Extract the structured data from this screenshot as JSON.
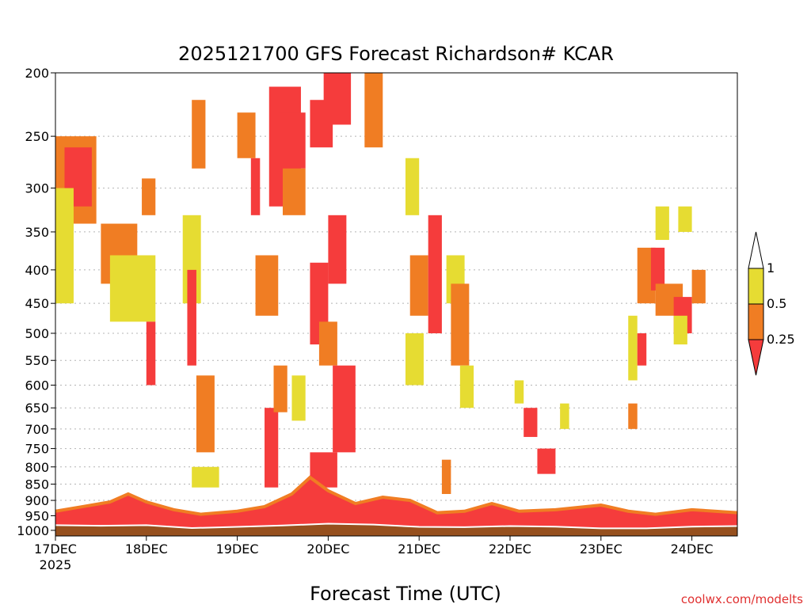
{
  "chart_data": {
    "type": "heatmap",
    "title": "2025121700 GFS Forecast Richardson# KCAR",
    "xlabel": "Forecast Time (UTC)",
    "ylabel": "",
    "credit": "coolwx.com/modelts",
    "x_start_label": "17DEC",
    "x_start_year": "2025",
    "x_ticks": [
      "17DEC",
      "18DEC",
      "19DEC",
      "20DEC",
      "21DEC",
      "22DEC",
      "23DEC",
      "24DEC"
    ],
    "x_tick_days": [
      0,
      1,
      2,
      3,
      4,
      5,
      6,
      7
    ],
    "x_range_days": [
      0,
      7.5
    ],
    "y_ticks": [
      200,
      250,
      300,
      350,
      400,
      450,
      500,
      550,
      600,
      650,
      700,
      750,
      800,
      850,
      900,
      950,
      1000
    ],
    "y_range_hpa": [
      200,
      1020
    ],
    "y_scale": "log-pressure (inverted, 1000 at bottom)",
    "gridlines": "dotted horizontal at pressure levels",
    "legend": {
      "position": "right",
      "labels": [
        "1",
        "0.5",
        "0.25"
      ],
      "bins": [
        {
          "range": "< 0.25",
          "color": "#f53c3c"
        },
        {
          "range": "0.25 - 0.5",
          "color": "#f07d23"
        },
        {
          "range": "0.5 - 1",
          "color": "#e6dc32"
        },
        {
          "range": "> 1",
          "color": "#ffffff"
        }
      ]
    },
    "colors": {
      "low": "#f53c3c",
      "mid": "#f07d23",
      "high": "#e6dc32",
      "ground": "#96501e",
      "sfc_line": "#ffffff",
      "credit": "#e03030"
    },
    "regions": [
      {
        "day": [
          0.0,
          0.45
        ],
        "p": [
          250,
          340
        ],
        "level": "mid"
      },
      {
        "day": [
          0.1,
          0.4
        ],
        "p": [
          260,
          320
        ],
        "level": "low"
      },
      {
        "day": [
          0.0,
          0.2
        ],
        "p": [
          300,
          450
        ],
        "level": "high"
      },
      {
        "day": [
          0.5,
          0.9
        ],
        "p": [
          340,
          420
        ],
        "level": "mid"
      },
      {
        "day": [
          0.6,
          1.1
        ],
        "p": [
          380,
          480
        ],
        "level": "high"
      },
      {
        "day": [
          0.95,
          1.1
        ],
        "p": [
          290,
          330
        ],
        "level": "mid"
      },
      {
        "day": [
          1.0,
          1.1
        ],
        "p": [
          480,
          600
        ],
        "level": "low"
      },
      {
        "day": [
          1.4,
          1.6
        ],
        "p": [
          330,
          450
        ],
        "level": "high"
      },
      {
        "day": [
          1.45,
          1.55
        ],
        "p": [
          400,
          560
        ],
        "level": "low"
      },
      {
        "day": [
          1.5,
          1.65
        ],
        "p": [
          220,
          280
        ],
        "level": "mid"
      },
      {
        "day": [
          1.55,
          1.75
        ],
        "p": [
          580,
          760
        ],
        "level": "mid"
      },
      {
        "day": [
          1.5,
          1.8
        ],
        "p": [
          800,
          860
        ],
        "level": "high"
      },
      {
        "day": [
          2.0,
          2.2
        ],
        "p": [
          230,
          270
        ],
        "level": "mid"
      },
      {
        "day": [
          2.15,
          2.25
        ],
        "p": [
          270,
          330
        ],
        "level": "low"
      },
      {
        "day": [
          2.2,
          2.45
        ],
        "p": [
          380,
          470
        ],
        "level": "mid"
      },
      {
        "day": [
          2.3,
          2.45
        ],
        "p": [
          650,
          860
        ],
        "level": "low"
      },
      {
        "day": [
          2.35,
          2.7
        ],
        "p": [
          210,
          320
        ],
        "level": "low"
      },
      {
        "day": [
          2.45,
          2.75
        ],
        "p": [
          230,
          280
        ],
        "level": "low"
      },
      {
        "day": [
          2.5,
          2.75
        ],
        "p": [
          280,
          330
        ],
        "level": "mid"
      },
      {
        "day": [
          2.4,
          2.55
        ],
        "p": [
          560,
          660
        ],
        "level": "mid"
      },
      {
        "day": [
          2.6,
          2.75
        ],
        "p": [
          580,
          680
        ],
        "level": "high"
      },
      {
        "day": [
          2.8,
          3.0
        ],
        "p": [
          390,
          520
        ],
        "level": "low"
      },
      {
        "day": [
          2.8,
          3.05
        ],
        "p": [
          220,
          260
        ],
        "level": "low"
      },
      {
        "day": [
          2.9,
          3.1
        ],
        "p": [
          480,
          560
        ],
        "level": "mid"
      },
      {
        "day": [
          2.95,
          3.25
        ],
        "p": [
          200,
          240
        ],
        "level": "low"
      },
      {
        "day": [
          3.0,
          3.2
        ],
        "p": [
          330,
          420
        ],
        "level": "low"
      },
      {
        "day": [
          3.05,
          3.3
        ],
        "p": [
          560,
          760
        ],
        "level": "low"
      },
      {
        "day": [
          2.8,
          3.1
        ],
        "p": [
          760,
          860
        ],
        "level": "low"
      },
      {
        "day": [
          3.4,
          3.6
        ],
        "p": [
          200,
          260
        ],
        "level": "mid"
      },
      {
        "day": [
          3.85,
          4.0
        ],
        "p": [
          270,
          330
        ],
        "level": "high"
      },
      {
        "day": [
          3.9,
          4.1
        ],
        "p": [
          380,
          470
        ],
        "level": "mid"
      },
      {
        "day": [
          3.85,
          4.05
        ],
        "p": [
          500,
          600
        ],
        "level": "high"
      },
      {
        "day": [
          4.1,
          4.25
        ],
        "p": [
          330,
          500
        ],
        "level": "low"
      },
      {
        "day": [
          4.3,
          4.5
        ],
        "p": [
          380,
          450
        ],
        "level": "high"
      },
      {
        "day": [
          4.35,
          4.55
        ],
        "p": [
          420,
          560
        ],
        "level": "mid"
      },
      {
        "day": [
          4.45,
          4.6
        ],
        "p": [
          560,
          650
        ],
        "level": "high"
      },
      {
        "day": [
          4.25,
          4.35
        ],
        "p": [
          780,
          880
        ],
        "level": "mid"
      },
      {
        "day": [
          5.05,
          5.15
        ],
        "p": [
          590,
          640
        ],
        "level": "high"
      },
      {
        "day": [
          5.15,
          5.3
        ],
        "p": [
          650,
          720
        ],
        "level": "low"
      },
      {
        "day": [
          5.3,
          5.5
        ],
        "p": [
          750,
          820
        ],
        "level": "low"
      },
      {
        "day": [
          5.55,
          5.65
        ],
        "p": [
          640,
          700
        ],
        "level": "high"
      },
      {
        "day": [
          6.3,
          6.4
        ],
        "p": [
          470,
          590
        ],
        "level": "high"
      },
      {
        "day": [
          6.4,
          6.5
        ],
        "p": [
          500,
          560
        ],
        "level": "low"
      },
      {
        "day": [
          6.4,
          6.6
        ],
        "p": [
          370,
          450
        ],
        "level": "mid"
      },
      {
        "day": [
          6.55,
          6.7
        ],
        "p": [
          370,
          430
        ],
        "level": "low"
      },
      {
        "day": [
          6.6,
          6.9
        ],
        "p": [
          420,
          470
        ],
        "level": "mid"
      },
      {
        "day": [
          6.8,
          7.0
        ],
        "p": [
          440,
          500
        ],
        "level": "low"
      },
      {
        "day": [
          6.8,
          6.95
        ],
        "p": [
          470,
          520
        ],
        "level": "high"
      },
      {
        "day": [
          7.0,
          7.15
        ],
        "p": [
          400,
          450
        ],
        "level": "mid"
      },
      {
        "day": [
          6.6,
          6.75
        ],
        "p": [
          320,
          360
        ],
        "level": "high"
      },
      {
        "day": [
          6.85,
          7.0
        ],
        "p": [
          320,
          350
        ],
        "level": "high"
      },
      {
        "day": [
          6.3,
          6.4
        ],
        "p": [
          640,
          700
        ],
        "level": "mid"
      }
    ],
    "boundary_layer": [
      {
        "day": 0.0,
        "top_p": 935
      },
      {
        "day": 0.3,
        "top_p": 920
      },
      {
        "day": 0.6,
        "top_p": 905
      },
      {
        "day": 0.8,
        "top_p": 880
      },
      {
        "day": 1.0,
        "top_p": 905
      },
      {
        "day": 1.3,
        "top_p": 930
      },
      {
        "day": 1.6,
        "top_p": 945
      },
      {
        "day": 2.0,
        "top_p": 935
      },
      {
        "day": 2.3,
        "top_p": 920
      },
      {
        "day": 2.6,
        "top_p": 880
      },
      {
        "day": 2.8,
        "top_p": 830
      },
      {
        "day": 3.0,
        "top_p": 870
      },
      {
        "day": 3.3,
        "top_p": 910
      },
      {
        "day": 3.6,
        "top_p": 890
      },
      {
        "day": 3.9,
        "top_p": 900
      },
      {
        "day": 4.2,
        "top_p": 940
      },
      {
        "day": 4.5,
        "top_p": 935
      },
      {
        "day": 4.8,
        "top_p": 910
      },
      {
        "day": 5.1,
        "top_p": 935
      },
      {
        "day": 5.5,
        "top_p": 930
      },
      {
        "day": 6.0,
        "top_p": 915
      },
      {
        "day": 6.3,
        "top_p": 935
      },
      {
        "day": 6.6,
        "top_p": 945
      },
      {
        "day": 7.0,
        "top_p": 930
      },
      {
        "day": 7.5,
        "top_p": 940
      }
    ],
    "surface_pressure": [
      {
        "day": 0.0,
        "p": 982
      },
      {
        "day": 0.5,
        "p": 984
      },
      {
        "day": 1.0,
        "p": 982
      },
      {
        "day": 1.5,
        "p": 992
      },
      {
        "day": 2.0,
        "p": 988
      },
      {
        "day": 2.5,
        "p": 983
      },
      {
        "day": 3.0,
        "p": 977
      },
      {
        "day": 3.5,
        "p": 980
      },
      {
        "day": 4.0,
        "p": 988
      },
      {
        "day": 4.5,
        "p": 989
      },
      {
        "day": 5.0,
        "p": 985
      },
      {
        "day": 5.5,
        "p": 987
      },
      {
        "day": 6.0,
        "p": 993
      },
      {
        "day": 6.5,
        "p": 993
      },
      {
        "day": 7.0,
        "p": 987
      },
      {
        "day": 7.5,
        "p": 985
      }
    ]
  }
}
